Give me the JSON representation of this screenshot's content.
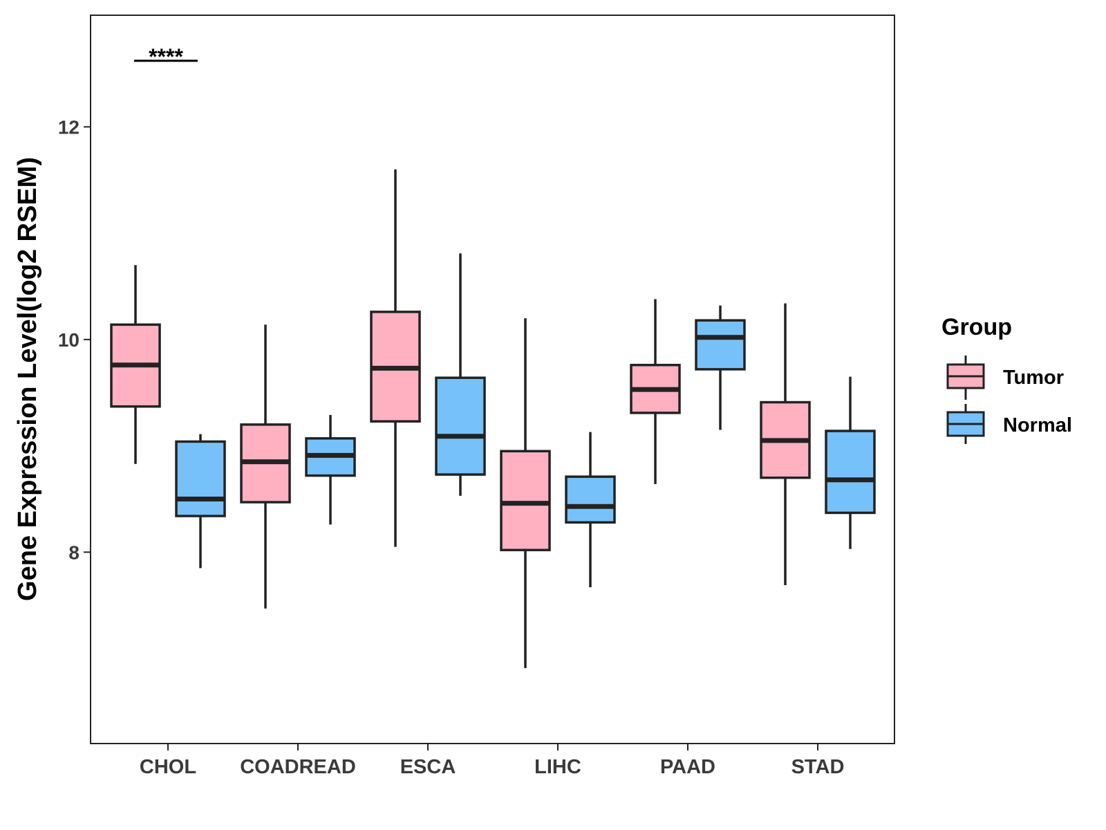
{
  "chart_data": {
    "type": "boxplot",
    "title": "",
    "xlabel": "",
    "ylabel": "Gene Expression Level(log2 RSEM)",
    "ylim": [
      6.2,
      13.05
    ],
    "yticks": [
      8,
      10,
      12
    ],
    "grid": false,
    "legend": {
      "title": "Group",
      "position": "right"
    },
    "categories": [
      "CHOL",
      "COADREAD",
      "ESCA",
      "LIHC",
      "PAAD",
      "STAD"
    ],
    "series": [
      {
        "name": "Tumor",
        "color": "#FFB1C2",
        "boxes": [
          {
            "whisker_low": 8.83,
            "q1": 9.37,
            "median": 9.76,
            "q3": 10.14,
            "whisker_high": 10.7
          },
          {
            "whisker_low": 7.47,
            "q1": 8.47,
            "median": 8.85,
            "q3": 9.2,
            "whisker_high": 10.14
          },
          {
            "whisker_low": 8.05,
            "q1": 9.23,
            "median": 9.73,
            "q3": 10.26,
            "whisker_high": 11.6
          },
          {
            "whisker_low": 6.91,
            "q1": 8.02,
            "median": 8.46,
            "q3": 8.95,
            "whisker_high": 10.2
          },
          {
            "whisker_low": 8.64,
            "q1": 9.31,
            "median": 9.53,
            "q3": 9.76,
            "whisker_high": 10.38
          },
          {
            "whisker_low": 7.69,
            "q1": 8.7,
            "median": 9.05,
            "q3": 9.41,
            "whisker_high": 10.34
          }
        ]
      },
      {
        "name": "Normal",
        "color": "#77C1FA",
        "boxes": [
          {
            "whisker_low": 7.85,
            "q1": 8.34,
            "median": 8.5,
            "q3": 9.04,
            "whisker_high": 9.11
          },
          {
            "whisker_low": 8.26,
            "q1": 8.72,
            "median": 8.91,
            "q3": 9.07,
            "whisker_high": 9.29
          },
          {
            "whisker_low": 8.53,
            "q1": 8.73,
            "median": 9.09,
            "q3": 9.64,
            "whisker_high": 10.81
          },
          {
            "whisker_low": 7.67,
            "q1": 8.28,
            "median": 8.43,
            "q3": 8.71,
            "whisker_high": 9.13
          },
          {
            "whisker_low": 9.15,
            "q1": 9.72,
            "median": 10.02,
            "q3": 10.18,
            "whisker_high": 10.32
          },
          {
            "whisker_low": 8.03,
            "q1": 8.37,
            "median": 8.68,
            "q3": 9.14,
            "whisker_high": 9.65
          }
        ]
      }
    ],
    "annotations": [
      {
        "text": "****",
        "category": "CHOL",
        "y": 12.68
      }
    ]
  },
  "colors": {
    "tumor": "#FFB1C2",
    "normal": "#77C1FA",
    "outline": "#222222",
    "panel_border": "#222222"
  }
}
